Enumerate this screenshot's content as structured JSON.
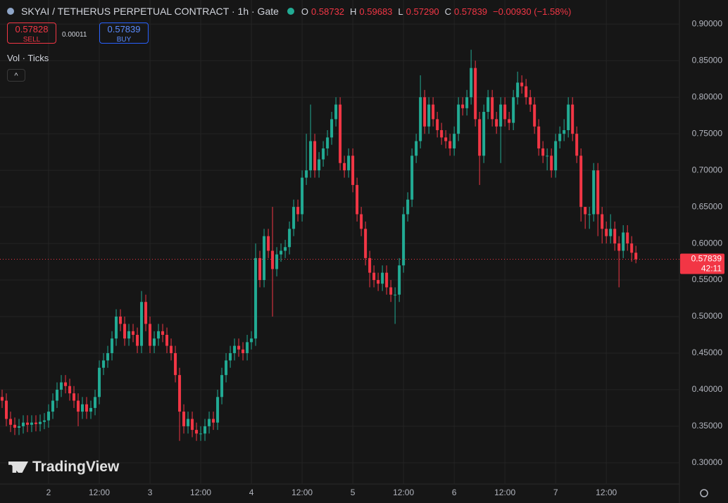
{
  "header": {
    "title": "SKYAI / TETHERUS PERPETUAL CONTRACT · 1h · Gate",
    "o_label": "O",
    "o": "0.58732",
    "h_label": "H",
    "h": "0.59683",
    "l_label": "L",
    "l": "0.57290",
    "c_label": "C",
    "c": "0.57839",
    "change": "−0.00930 (−1.58%)"
  },
  "trade": {
    "sell_price": "0.57828",
    "sell_label": "SELL",
    "spread": "0.00011",
    "buy_price": "0.57839",
    "buy_label": "BUY"
  },
  "indicators": "Vol · Ticks",
  "watermark": "TradingView",
  "chart_data": {
    "type": "candlestick",
    "up_color": "#22ab94",
    "down_color": "#f23645",
    "grid": true,
    "xlim": [
      -11.5,
      149.3
    ],
    "ylim": [
      0.271,
      0.933
    ],
    "xticks": [
      {
        "value": 0,
        "label": "2"
      },
      {
        "value": 12,
        "label": "12:00"
      },
      {
        "value": 24,
        "label": "3"
      },
      {
        "value": 36,
        "label": "12:00"
      },
      {
        "value": 48,
        "label": "4"
      },
      {
        "value": 60,
        "label": "12:00"
      },
      {
        "value": 72,
        "label": "5"
      },
      {
        "value": 84,
        "label": "12:00"
      },
      {
        "value": 96,
        "label": "6"
      },
      {
        "value": 108,
        "label": "12:00"
      },
      {
        "value": 120,
        "label": "7"
      },
      {
        "value": 132,
        "label": "12:00"
      }
    ],
    "yticks": [
      {
        "value": 0.3,
        "label": "0.30000"
      },
      {
        "value": 0.35,
        "label": "0.35000"
      },
      {
        "value": 0.4,
        "label": "0.40000"
      },
      {
        "value": 0.45,
        "label": "0.45000"
      },
      {
        "value": 0.5,
        "label": "0.50000"
      },
      {
        "value": 0.55,
        "label": "0.55000"
      },
      {
        "value": 0.6,
        "label": "0.60000"
      },
      {
        "value": 0.65,
        "label": "0.65000"
      },
      {
        "value": 0.7,
        "label": "0.70000"
      },
      {
        "value": 0.75,
        "label": "0.75000"
      },
      {
        "value": 0.8,
        "label": "0.80000"
      },
      {
        "value": 0.85,
        "label": "0.85000"
      },
      {
        "value": 0.9,
        "label": "0.90000"
      }
    ],
    "last_price": 0.57839,
    "countdown": "42:11",
    "x": [
      -11,
      -10,
      -9,
      -8,
      -7,
      -6,
      -5,
      -4,
      -3,
      -2,
      -1,
      0,
      1,
      2,
      3,
      4,
      5,
      6,
      7,
      8,
      9,
      10,
      11,
      12,
      13,
      14,
      15,
      16,
      17,
      18,
      19,
      20,
      21,
      22,
      23,
      24,
      25,
      26,
      27,
      28,
      29,
      30,
      31,
      32,
      33,
      34,
      35,
      36,
      37,
      38,
      39,
      40,
      41,
      42,
      43,
      44,
      45,
      46,
      47,
      48,
      49,
      50,
      51,
      52,
      53,
      54,
      55,
      56,
      57,
      58,
      59,
      60,
      61,
      62,
      63,
      64,
      65,
      66,
      67,
      68,
      69,
      70,
      71,
      72,
      73,
      74,
      75,
      76,
      77,
      78,
      79,
      80,
      81,
      82,
      83,
      84,
      85,
      86,
      87,
      88,
      89,
      90,
      91,
      92,
      93,
      94,
      95,
      96,
      97,
      98,
      99,
      100,
      101,
      102,
      103,
      104,
      105,
      106,
      107,
      108,
      109,
      110,
      111,
      112,
      113,
      114,
      115,
      116,
      117,
      118,
      119,
      120,
      121,
      122,
      123,
      124,
      125,
      126,
      127,
      128,
      129,
      130,
      131,
      132,
      133,
      134,
      135,
      136,
      137,
      138,
      139
    ],
    "open": [
      0.39,
      0.385,
      0.36,
      0.352,
      0.348,
      0.35,
      0.355,
      0.352,
      0.355,
      0.353,
      0.356,
      0.358,
      0.37,
      0.385,
      0.4,
      0.41,
      0.405,
      0.395,
      0.385,
      0.37,
      0.38,
      0.37,
      0.375,
      0.39,
      0.43,
      0.44,
      0.45,
      0.47,
      0.5,
      0.49,
      0.47,
      0.48,
      0.475,
      0.46,
      0.52,
      0.49,
      0.46,
      0.47,
      0.48,
      0.475,
      0.46,
      0.45,
      0.42,
      0.37,
      0.35,
      0.36,
      0.345,
      0.34,
      0.34,
      0.35,
      0.36,
      0.355,
      0.39,
      0.42,
      0.44,
      0.45,
      0.46,
      0.455,
      0.45,
      0.465,
      0.47,
      0.58,
      0.55,
      0.61,
      0.59,
      0.565,
      0.585,
      0.59,
      0.595,
      0.62,
      0.65,
      0.64,
      0.69,
      0.7,
      0.74,
      0.7,
      0.715,
      0.73,
      0.745,
      0.77,
      0.79,
      0.71,
      0.7,
      0.72,
      0.68,
      0.64,
      0.62,
      0.58,
      0.56,
      0.55,
      0.545,
      0.56,
      0.54,
      0.53,
      0.53,
      0.57,
      0.64,
      0.66,
      0.72,
      0.74,
      0.8,
      0.76,
      0.79,
      0.77,
      0.755,
      0.745,
      0.74,
      0.73,
      0.75,
      0.79,
      0.785,
      0.8,
      0.84,
      0.77,
      0.72,
      0.78,
      0.8,
      0.77,
      0.76,
      0.79,
      0.77,
      0.765,
      0.8,
      0.82,
      0.815,
      0.8,
      0.79,
      0.76,
      0.73,
      0.72,
      0.72,
      0.7,
      0.74,
      0.75,
      0.755,
      0.79,
      0.75,
      0.72,
      0.65,
      0.64,
      0.64,
      0.7,
      0.64,
      0.62,
      0.61,
      0.62,
      0.6,
      0.59,
      0.615,
      0.6,
      0.58732
    ],
    "high": [
      0.4,
      0.395,
      0.37,
      0.362,
      0.36,
      0.365,
      0.365,
      0.365,
      0.365,
      0.366,
      0.368,
      0.38,
      0.395,
      0.41,
      0.42,
      0.42,
      0.415,
      0.405,
      0.395,
      0.39,
      0.39,
      0.385,
      0.4,
      0.44,
      0.45,
      0.46,
      0.48,
      0.51,
      0.51,
      0.5,
      0.49,
      0.49,
      0.485,
      0.535,
      0.53,
      0.5,
      0.48,
      0.49,
      0.49,
      0.485,
      0.47,
      0.46,
      0.43,
      0.38,
      0.37,
      0.37,
      0.355,
      0.35,
      0.36,
      0.37,
      0.37,
      0.4,
      0.43,
      0.45,
      0.46,
      0.47,
      0.47,
      0.465,
      0.475,
      0.48,
      0.6,
      0.59,
      0.62,
      0.62,
      0.65,
      0.595,
      0.6,
      0.605,
      0.63,
      0.66,
      0.66,
      0.7,
      0.75,
      0.79,
      0.75,
      0.725,
      0.74,
      0.755,
      0.78,
      0.8,
      0.8,
      0.72,
      0.73,
      0.73,
      0.69,
      0.65,
      0.63,
      0.59,
      0.57,
      0.56,
      0.57,
      0.57,
      0.55,
      0.54,
      0.58,
      0.65,
      0.67,
      0.73,
      0.75,
      0.83,
      0.81,
      0.8,
      0.8,
      0.78,
      0.765,
      0.755,
      0.75,
      0.76,
      0.8,
      0.8,
      0.81,
      0.865,
      0.85,
      0.78,
      0.79,
      0.81,
      0.81,
      0.78,
      0.8,
      0.8,
      0.78,
      0.81,
      0.835,
      0.83,
      0.825,
      0.81,
      0.8,
      0.77,
      0.74,
      0.73,
      0.73,
      0.75,
      0.76,
      0.77,
      0.8,
      0.8,
      0.76,
      0.73,
      0.65,
      0.65,
      0.71,
      0.71,
      0.65,
      0.63,
      0.64,
      0.63,
      0.61,
      0.625,
      0.625,
      0.61,
      0.59683
    ],
    "low": [
      0.375,
      0.35,
      0.342,
      0.338,
      0.338,
      0.34,
      0.342,
      0.342,
      0.343,
      0.343,
      0.346,
      0.348,
      0.36,
      0.375,
      0.39,
      0.395,
      0.385,
      0.375,
      0.35,
      0.36,
      0.36,
      0.36,
      0.365,
      0.38,
      0.42,
      0.43,
      0.44,
      0.46,
      0.48,
      0.46,
      0.46,
      0.465,
      0.45,
      0.45,
      0.48,
      0.45,
      0.45,
      0.46,
      0.465,
      0.45,
      0.44,
      0.41,
      0.33,
      0.34,
      0.34,
      0.335,
      0.33,
      0.33,
      0.33,
      0.34,
      0.345,
      0.345,
      0.38,
      0.41,
      0.43,
      0.44,
      0.445,
      0.44,
      0.44,
      0.455,
      0.46,
      0.54,
      0.54,
      0.58,
      0.5,
      0.555,
      0.575,
      0.58,
      0.585,
      0.61,
      0.63,
      0.63,
      0.68,
      0.69,
      0.69,
      0.69,
      0.705,
      0.72,
      0.735,
      0.76,
      0.7,
      0.69,
      0.69,
      0.67,
      0.63,
      0.61,
      0.57,
      0.54,
      0.54,
      0.535,
      0.535,
      0.53,
      0.52,
      0.49,
      0.52,
      0.56,
      0.63,
      0.65,
      0.71,
      0.73,
      0.75,
      0.75,
      0.76,
      0.745,
      0.735,
      0.73,
      0.72,
      0.72,
      0.74,
      0.775,
      0.775,
      0.79,
      0.76,
      0.68,
      0.71,
      0.77,
      0.76,
      0.75,
      0.71,
      0.76,
      0.755,
      0.755,
      0.79,
      0.805,
      0.79,
      0.78,
      0.75,
      0.72,
      0.71,
      0.7,
      0.69,
      0.69,
      0.73,
      0.74,
      0.745,
      0.74,
      0.71,
      0.63,
      0.62,
      0.62,
      0.63,
      0.61,
      0.6,
      0.6,
      0.6,
      0.59,
      0.54,
      0.58,
      0.59,
      0.575,
      0.5729
    ],
    "close": [
      0.385,
      0.36,
      0.352,
      0.348,
      0.35,
      0.355,
      0.352,
      0.355,
      0.353,
      0.356,
      0.358,
      0.37,
      0.385,
      0.4,
      0.41,
      0.405,
      0.395,
      0.385,
      0.37,
      0.38,
      0.37,
      0.375,
      0.39,
      0.43,
      0.44,
      0.45,
      0.47,
      0.5,
      0.49,
      0.47,
      0.48,
      0.475,
      0.46,
      0.52,
      0.49,
      0.46,
      0.47,
      0.48,
      0.475,
      0.46,
      0.45,
      0.42,
      0.37,
      0.35,
      0.36,
      0.345,
      0.34,
      0.34,
      0.35,
      0.36,
      0.355,
      0.39,
      0.42,
      0.44,
      0.45,
      0.46,
      0.455,
      0.45,
      0.465,
      0.47,
      0.58,
      0.55,
      0.61,
      0.59,
      0.565,
      0.585,
      0.59,
      0.595,
      0.62,
      0.65,
      0.64,
      0.69,
      0.7,
      0.74,
      0.7,
      0.715,
      0.73,
      0.745,
      0.77,
      0.79,
      0.71,
      0.7,
      0.72,
      0.68,
      0.64,
      0.62,
      0.58,
      0.56,
      0.55,
      0.545,
      0.56,
      0.54,
      0.53,
      0.53,
      0.57,
      0.64,
      0.66,
      0.72,
      0.74,
      0.8,
      0.76,
      0.79,
      0.77,
      0.755,
      0.745,
      0.74,
      0.73,
      0.75,
      0.79,
      0.785,
      0.8,
      0.84,
      0.77,
      0.72,
      0.78,
      0.8,
      0.77,
      0.76,
      0.79,
      0.77,
      0.765,
      0.8,
      0.82,
      0.815,
      0.8,
      0.79,
      0.76,
      0.73,
      0.72,
      0.72,
      0.7,
      0.74,
      0.75,
      0.755,
      0.79,
      0.75,
      0.72,
      0.65,
      0.64,
      0.64,
      0.7,
      0.64,
      0.62,
      0.61,
      0.62,
      0.6,
      0.59,
      0.615,
      0.6,
      0.58732,
      0.57839
    ]
  }
}
